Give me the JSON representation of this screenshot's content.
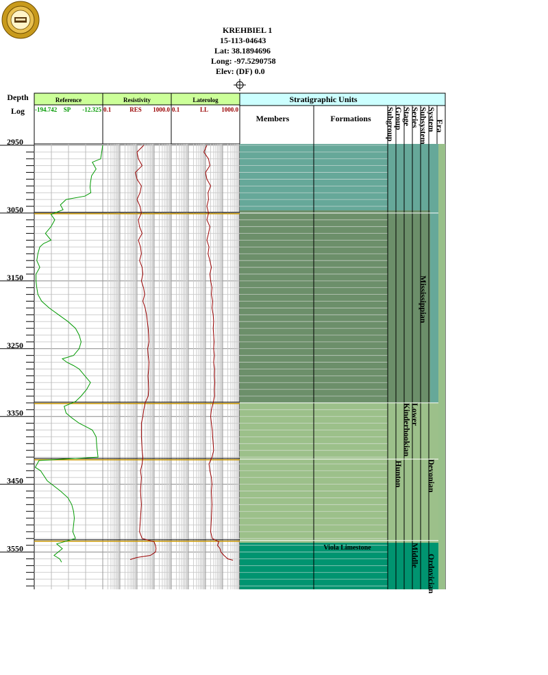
{
  "well": {
    "name": "KREHBIEL 1",
    "api": "15-113-04643",
    "lat": "Lat: 38.1894696",
    "long": "Long: -97.5290758",
    "elev": "Elev: (DF) 0.0"
  },
  "columns": {
    "depth_title": "Depth",
    "depth_sub": "Log",
    "reference": {
      "title": "Reference",
      "min": "-194.742",
      "curve": "SP",
      "max": "-12.325"
    },
    "resistivity": {
      "title": "Resistivity",
      "min": "0.1",
      "curve": "RES",
      "max": "1000.0"
    },
    "laterolog": {
      "title": "Laterolog",
      "min": "0.1",
      "curve": "LL",
      "max": "1000.0"
    },
    "strat": {
      "title": "Stratigraphic Units",
      "members": "Members",
      "formations": "Formations",
      "subgroup": "Subgroup",
      "group": "Group",
      "stage": "Stage",
      "series": "Series",
      "subsystem": "Subsystem",
      "system": "System",
      "era": "Era"
    }
  },
  "depth_labels": [
    "2950",
    "3050",
    "3150",
    "3250",
    "3350",
    "3450",
    "3550"
  ],
  "units": {
    "system_mississippian": "Mississippian",
    "system_devonian": "Devonian",
    "system_ordovician": "Ordovician",
    "series_lower": "Lower",
    "stage_kinderhookian": "Kinderhookian",
    "group_hunton": "Hunton",
    "series_middle": "Middle",
    "formation_viola": "Viola Limestone"
  },
  "colors": {
    "header_green": "#ccff99",
    "strat_header": "#ccffff",
    "mississippian_upper": "#66a899",
    "mississippian": "#6c8f6a",
    "devonian": "#9cc08a",
    "ordovician": "#009470",
    "era_green": "#99c08a",
    "sp_curve": "#009900",
    "res_curve": "#990000",
    "marker": "#cc9900"
  },
  "chart_data": {
    "type": "line",
    "ylabel": "Depth",
    "ylim": [
      2948,
      3605
    ],
    "tops": [
      3050,
      3330,
      3413,
      3533
    ],
    "series": [
      {
        "name": "SP",
        "track": "reference",
        "scale": "linear",
        "xlim": [
          -194.742,
          -12.325
        ],
        "points": [
          [
            2950,
            -12.5
          ],
          [
            2960,
            -15
          ],
          [
            2970,
            -18
          ],
          [
            2975,
            -40
          ],
          [
            2985,
            -30
          ],
          [
            2995,
            -42
          ],
          [
            3005,
            -45
          ],
          [
            3012,
            -46
          ],
          [
            3020,
            -44
          ],
          [
            3025,
            -60
          ],
          [
            3030,
            -110
          ],
          [
            3038,
            -125
          ],
          [
            3045,
            -118
          ],
          [
            3052,
            -150
          ],
          [
            3060,
            -140
          ],
          [
            3070,
            -150
          ],
          [
            3080,
            -165
          ],
          [
            3090,
            -150
          ],
          [
            3095,
            -170
          ],
          [
            3100,
            -180
          ],
          [
            3110,
            -185
          ],
          [
            3120,
            -188
          ],
          [
            3130,
            -180
          ],
          [
            3140,
            -190
          ],
          [
            3150,
            -190
          ],
          [
            3160,
            -188
          ],
          [
            3170,
            -185
          ],
          [
            3180,
            -175
          ],
          [
            3190,
            -155
          ],
          [
            3200,
            -130
          ],
          [
            3210,
            -105
          ],
          [
            3220,
            -85
          ],
          [
            3230,
            -75
          ],
          [
            3240,
            -70
          ],
          [
            3250,
            -75
          ],
          [
            3260,
            -90
          ],
          [
            3265,
            -120
          ],
          [
            3270,
            -108
          ],
          [
            3275,
            -90
          ],
          [
            3280,
            -75
          ],
          [
            3290,
            -60
          ],
          [
            3300,
            -45
          ],
          [
            3310,
            -55
          ],
          [
            3320,
            -70
          ],
          [
            3328,
            -85
          ],
          [
            3335,
            -115
          ],
          [
            3345,
            -110
          ],
          [
            3352,
            -95
          ],
          [
            3360,
            -75
          ],
          [
            3370,
            -40
          ],
          [
            3380,
            -30
          ],
          [
            3395,
            -28
          ],
          [
            3410,
            -25
          ],
          [
            3415,
            -182
          ],
          [
            3425,
            -192
          ],
          [
            3430,
            -178
          ],
          [
            3445,
            -160
          ],
          [
            3460,
            -125
          ],
          [
            3470,
            -105
          ],
          [
            3480,
            -95
          ],
          [
            3490,
            -90
          ],
          [
            3500,
            -88
          ],
          [
            3510,
            -90
          ],
          [
            3520,
            -92
          ],
          [
            3530,
            -85
          ],
          [
            3538,
            -135
          ],
          [
            3545,
            -120
          ],
          [
            3555,
            -142
          ],
          [
            3560,
            -127
          ],
          [
            3565,
            -122
          ]
        ]
      },
      {
        "name": "RES",
        "track": "resistivity",
        "scale": "log",
        "xlim": [
          0.1,
          1000
        ],
        "points": [
          [
            2950,
            25
          ],
          [
            2960,
            10
          ],
          [
            2970,
            12
          ],
          [
            2980,
            20
          ],
          [
            2990,
            8
          ],
          [
            3000,
            10
          ],
          [
            3010,
            18
          ],
          [
            3020,
            15
          ],
          [
            3030,
            10
          ],
          [
            3040,
            15
          ],
          [
            3050,
            18
          ],
          [
            3060,
            12
          ],
          [
            3070,
            14
          ],
          [
            3080,
            20
          ],
          [
            3090,
            12
          ],
          [
            3100,
            16
          ],
          [
            3110,
            18
          ],
          [
            3120,
            14
          ],
          [
            3130,
            20
          ],
          [
            3140,
            22
          ],
          [
            3150,
            18
          ],
          [
            3160,
            24
          ],
          [
            3170,
            28
          ],
          [
            3180,
            22
          ],
          [
            3190,
            30
          ],
          [
            3200,
            36
          ],
          [
            3210,
            40
          ],
          [
            3220,
            45
          ],
          [
            3230,
            48
          ],
          [
            3240,
            50
          ],
          [
            3250,
            42
          ],
          [
            3260,
            45
          ],
          [
            3270,
            50
          ],
          [
            3280,
            48
          ],
          [
            3290,
            44
          ],
          [
            3300,
            46
          ],
          [
            3310,
            48
          ],
          [
            3320,
            45
          ],
          [
            3330,
            30
          ],
          [
            3340,
            25
          ],
          [
            3350,
            22
          ],
          [
            3360,
            18
          ],
          [
            3380,
            18
          ],
          [
            3400,
            20
          ],
          [
            3410,
            22
          ],
          [
            3420,
            20
          ],
          [
            3430,
            16
          ],
          [
            3440,
            18
          ],
          [
            3460,
            16
          ],
          [
            3480,
            18
          ],
          [
            3500,
            16
          ],
          [
            3520,
            14
          ],
          [
            3530,
            20
          ],
          [
            3535,
            100
          ],
          [
            3540,
            120
          ],
          [
            3545,
            130
          ],
          [
            3550,
            120
          ],
          [
            3555,
            60
          ],
          [
            3558,
            10
          ],
          [
            3561,
            4
          ]
        ]
      },
      {
        "name": "LL",
        "track": "laterolog",
        "scale": "log",
        "xlim": [
          0.1,
          1000
        ],
        "points": [
          [
            2950,
            12
          ],
          [
            2960,
            8
          ],
          [
            2970,
            15
          ],
          [
            2980,
            18
          ],
          [
            2990,
            10
          ],
          [
            3000,
            12
          ],
          [
            3010,
            20
          ],
          [
            3020,
            14
          ],
          [
            3030,
            15
          ],
          [
            3040,
            12
          ],
          [
            3050,
            15
          ],
          [
            3060,
            12
          ],
          [
            3070,
            18
          ],
          [
            3080,
            15
          ],
          [
            3090,
            12
          ],
          [
            3100,
            16
          ],
          [
            3110,
            14
          ],
          [
            3120,
            18
          ],
          [
            3130,
            22
          ],
          [
            3140,
            18
          ],
          [
            3150,
            20
          ],
          [
            3160,
            24
          ],
          [
            3170,
            22
          ],
          [
            3180,
            26
          ],
          [
            3190,
            24
          ],
          [
            3200,
            28
          ],
          [
            3210,
            30
          ],
          [
            3220,
            28
          ],
          [
            3230,
            30
          ],
          [
            3240,
            32
          ],
          [
            3250,
            30
          ],
          [
            3260,
            33
          ],
          [
            3270,
            30
          ],
          [
            3280,
            34
          ],
          [
            3290,
            33
          ],
          [
            3300,
            35
          ],
          [
            3310,
            33
          ],
          [
            3320,
            34
          ],
          [
            3330,
            28
          ],
          [
            3340,
            22
          ],
          [
            3350,
            20
          ],
          [
            3360,
            22
          ],
          [
            3370,
            25
          ],
          [
            3380,
            26
          ],
          [
            3390,
            28
          ],
          [
            3400,
            30
          ],
          [
            3410,
            24
          ],
          [
            3420,
            16
          ],
          [
            3430,
            18
          ],
          [
            3440,
            22
          ],
          [
            3450,
            24
          ],
          [
            3460,
            22
          ],
          [
            3480,
            24
          ],
          [
            3500,
            22
          ],
          [
            3520,
            20
          ],
          [
            3530,
            25
          ],
          [
            3535,
            60
          ],
          [
            3540,
            50
          ],
          [
            3545,
            70
          ],
          [
            3550,
            80
          ],
          [
            3555,
            120
          ],
          [
            3560,
            200
          ],
          [
            3562,
            400
          ]
        ]
      }
    ]
  }
}
